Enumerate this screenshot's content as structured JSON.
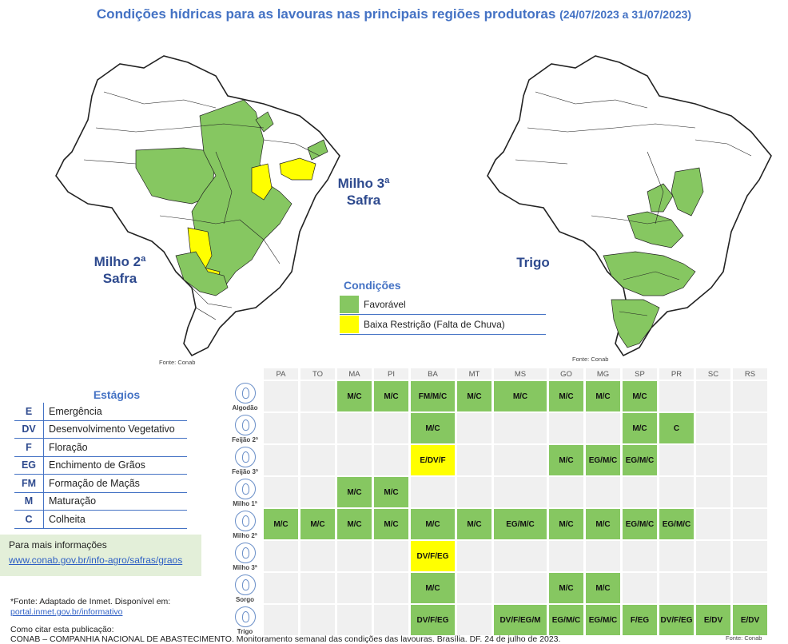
{
  "title": {
    "main": "Condições hídricas para as lavouras nas principais regiões produtoras",
    "period": "(24/07/2023 a 31/07/2023)"
  },
  "maps": {
    "left_label_1": "Milho 2ª",
    "left_label_2": "Safra",
    "mid_label_1": "Milho 3ª",
    "mid_label_2": "Safra",
    "right_label": "Trigo",
    "fonte_left": "Fonte: Conab",
    "fonte_right": "Fonte: Conab",
    "colors": {
      "favoravel": "#86c761",
      "baixa_restricao": "#ffff00",
      "none": "#ffffff"
    }
  },
  "legend": {
    "title": "Condições",
    "items": [
      {
        "label": "Favorável",
        "color": "#86c761"
      },
      {
        "label": "Baixa Restrição (Falta de Chuva)",
        "color": "#ffff00"
      }
    ]
  },
  "stages": {
    "title": "Estágios",
    "items": [
      {
        "code": "E",
        "name": "Emergência"
      },
      {
        "code": "DV",
        "name": "Desenvolvimento Vegetativo"
      },
      {
        "code": "F",
        "name": "Floração"
      },
      {
        "code": "EG",
        "name": "Enchimento de Grãos"
      },
      {
        "code": "FM",
        "name": "Formação de Maçãs"
      },
      {
        "code": "M",
        "name": "Maturação"
      },
      {
        "code": "C",
        "name": "Colheita"
      }
    ]
  },
  "info": {
    "label": "Para mais informações",
    "link": "www.conab.gov.br/info-agro/safras/graos"
  },
  "source": {
    "line1": "*Fonte: Adaptado de Inmet. Disponível em:",
    "link": "portal.inmet.gov.br/informativo"
  },
  "citation": {
    "line1": "Como citar esta publicação:",
    "line2": "CONAB – COMPANHIA NACIONAL DE ABASTECIMENTO. Monitoramento semanal das condições das lavouras. Brasília. DF. 24 de julho de 2023.",
    "fonte": "Fonte: Conab"
  },
  "table": {
    "states": [
      "PA",
      "TO",
      "MA",
      "PI",
      "BA",
      "MT",
      "MS",
      "GO",
      "MG",
      "SP",
      "PR",
      "SC",
      "RS"
    ],
    "rows": [
      {
        "crop": "Algodão",
        "cells": [
          [
            "",
            ""
          ],
          [
            "",
            ""
          ],
          [
            "M/C",
            "fav"
          ],
          [
            "M/C",
            "fav"
          ],
          [
            "FM/M/C",
            "fav"
          ],
          [
            "M/C",
            "fav"
          ],
          [
            "M/C",
            "fav"
          ],
          [
            "M/C",
            "fav"
          ],
          [
            "M/C",
            "fav"
          ],
          [
            "M/C",
            "fav"
          ],
          [
            "",
            ""
          ],
          [
            "",
            ""
          ],
          [
            "",
            ""
          ]
        ]
      },
      {
        "crop": "Feijão 2ª",
        "cells": [
          [
            "",
            ""
          ],
          [
            "",
            ""
          ],
          [
            "",
            ""
          ],
          [
            "",
            ""
          ],
          [
            "M/C",
            "fav"
          ],
          [
            "",
            ""
          ],
          [
            "",
            ""
          ],
          [
            "",
            ""
          ],
          [
            "",
            ""
          ],
          [
            "M/C",
            "fav"
          ],
          [
            "C",
            "fav"
          ],
          [
            "",
            ""
          ],
          [
            "",
            ""
          ]
        ]
      },
      {
        "crop": "Feijão 3ª",
        "cells": [
          [
            "",
            ""
          ],
          [
            "",
            ""
          ],
          [
            "",
            ""
          ],
          [
            "",
            ""
          ],
          [
            "E/DV/F",
            "low"
          ],
          [
            "",
            ""
          ],
          [
            "",
            ""
          ],
          [
            "M/C",
            "fav"
          ],
          [
            "EG/M/C",
            "fav"
          ],
          [
            "EG/M/C",
            "fav"
          ],
          [
            "",
            ""
          ],
          [
            "",
            ""
          ],
          [
            "",
            ""
          ]
        ]
      },
      {
        "crop": "Milho 1ª",
        "cells": [
          [
            "",
            ""
          ],
          [
            "",
            ""
          ],
          [
            "M/C",
            "fav"
          ],
          [
            "M/C",
            "fav"
          ],
          [
            "",
            ""
          ],
          [
            "",
            ""
          ],
          [
            "",
            ""
          ],
          [
            "",
            ""
          ],
          [
            "",
            ""
          ],
          [
            "",
            ""
          ],
          [
            "",
            ""
          ],
          [
            "",
            ""
          ],
          [
            "",
            ""
          ]
        ]
      },
      {
        "crop": "Milho 2ª",
        "cells": [
          [
            "M/C",
            "fav"
          ],
          [
            "M/C",
            "fav"
          ],
          [
            "M/C",
            "fav"
          ],
          [
            "M/C",
            "fav"
          ],
          [
            "M/C",
            "fav"
          ],
          [
            "M/C",
            "fav"
          ],
          [
            "EG/M/C",
            "fav"
          ],
          [
            "M/C",
            "fav"
          ],
          [
            "M/C",
            "fav"
          ],
          [
            "EG/M/C",
            "fav"
          ],
          [
            "EG/M/C",
            "fav"
          ],
          [
            "",
            ""
          ],
          [
            "",
            ""
          ]
        ]
      },
      {
        "crop": "Milho 3ª",
        "cells": [
          [
            "",
            ""
          ],
          [
            "",
            ""
          ],
          [
            "",
            ""
          ],
          [
            "",
            ""
          ],
          [
            "DV/F/EG",
            "low"
          ],
          [
            "",
            ""
          ],
          [
            "",
            ""
          ],
          [
            "",
            ""
          ],
          [
            "",
            ""
          ],
          [
            "",
            ""
          ],
          [
            "",
            ""
          ],
          [
            "",
            ""
          ],
          [
            "",
            ""
          ]
        ]
      },
      {
        "crop": "Sorgo",
        "cells": [
          [
            "",
            ""
          ],
          [
            "",
            ""
          ],
          [
            "",
            ""
          ],
          [
            "",
            ""
          ],
          [
            "M/C",
            "fav"
          ],
          [
            "",
            ""
          ],
          [
            "",
            ""
          ],
          [
            "M/C",
            "fav"
          ],
          [
            "M/C",
            "fav"
          ],
          [
            "",
            ""
          ],
          [
            "",
            ""
          ],
          [
            "",
            ""
          ],
          [
            "",
            ""
          ]
        ]
      },
      {
        "crop": "Trigo",
        "cells": [
          [
            "",
            ""
          ],
          [
            "",
            ""
          ],
          [
            "",
            ""
          ],
          [
            "",
            ""
          ],
          [
            "DV/F/EG",
            "fav"
          ],
          [
            "",
            ""
          ],
          [
            "DV/F/EG/M",
            "fav"
          ],
          [
            "EG/M/C",
            "fav"
          ],
          [
            "EG/M/C",
            "fav"
          ],
          [
            "F/EG",
            "fav"
          ],
          [
            "DV/F/EG",
            "fav"
          ],
          [
            "E/DV",
            "fav"
          ],
          [
            "E/DV",
            "fav"
          ]
        ]
      }
    ]
  }
}
